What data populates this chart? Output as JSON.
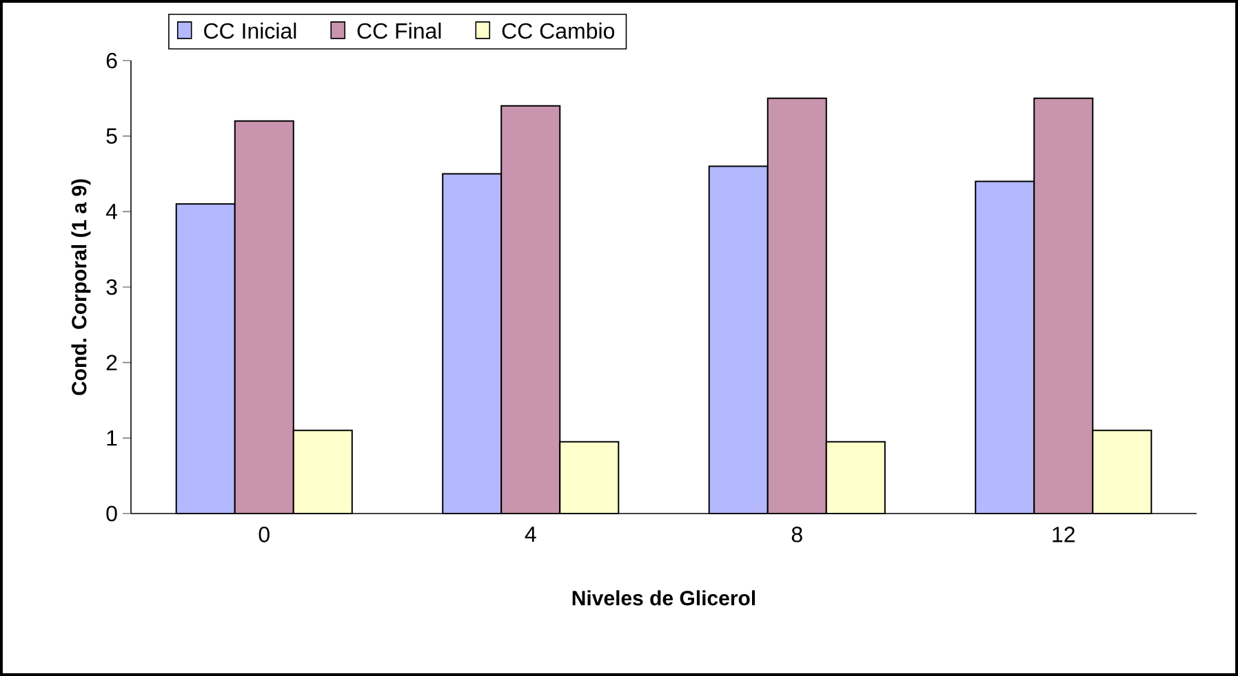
{
  "chart_data": {
    "type": "bar",
    "xlabel": "Niveles de Glicerol",
    "ylabel": "Cond. Corporal (1 a 9)",
    "categories": [
      "0",
      "4",
      "8",
      "12"
    ],
    "series": [
      {
        "name": "CC Inicial",
        "color": "#b4b8ff",
        "values": [
          4.1,
          4.5,
          4.6,
          4.4
        ]
      },
      {
        "name": "CC Final",
        "color": "#c994ad",
        "values": [
          5.2,
          5.4,
          5.5,
          5.5
        ]
      },
      {
        "name": "CC Cambio",
        "color": "#ffffcc",
        "values": [
          1.1,
          0.95,
          0.95,
          1.1
        ]
      }
    ],
    "ylim": [
      0,
      6
    ],
    "yticks": [
      0,
      1,
      2,
      3,
      4,
      5,
      6
    ],
    "grid": false,
    "legend": "top"
  }
}
